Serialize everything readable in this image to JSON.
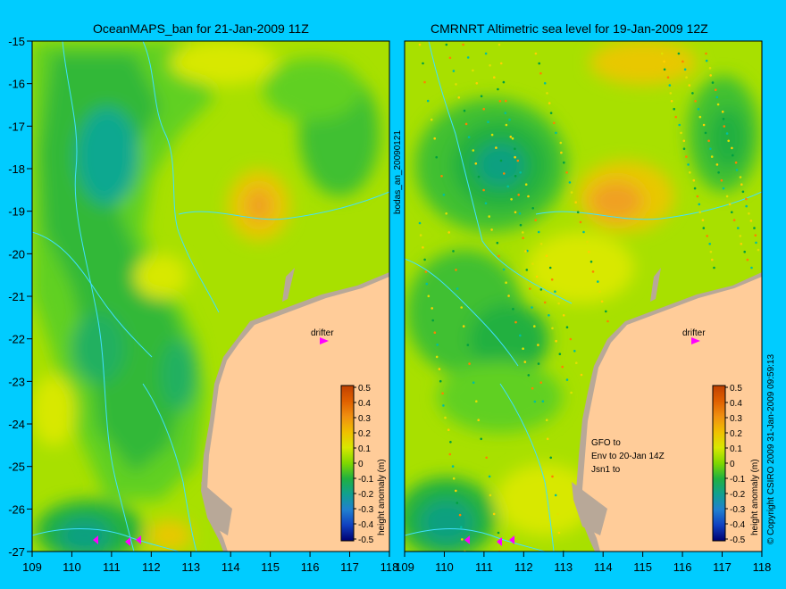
{
  "panels": {
    "left": {
      "title": "OceanMAPS_ban for 21-Jan-2009 11Z",
      "drifter_label": "drifter"
    },
    "right": {
      "title": "CMRNRT Altimetric sea level  for 19-Jan-2009 12Z",
      "drifter_label": "drifter",
      "sat_lines": [
        "GFO to",
        "Env to 20-Jan 14Z",
        "Jsn1 to"
      ]
    }
  },
  "axes": {
    "lat_ticks": [
      "-15",
      "-16",
      "-17",
      "-18",
      "-19",
      "-20",
      "-21",
      "-22",
      "-23",
      "-24",
      "-25",
      "-26",
      "-27"
    ],
    "lon_ticks_left": [
      "109",
      "110",
      "111",
      "112",
      "113",
      "114",
      "115",
      "116",
      "117",
      "118"
    ],
    "lon_ticks_right": [
      "109",
      "110",
      "111",
      "112",
      "113",
      "114",
      "115",
      "116",
      "117",
      "118"
    ]
  },
  "colorbar": {
    "label": "height anomaly (m)",
    "ticks": [
      "0.5",
      "0.4",
      "0.3",
      "0.2",
      "0.1",
      "0",
      "-0.1",
      "-0.2",
      "-0.3",
      "-0.4",
      "-0.5"
    ],
    "colors": [
      "#e06000",
      "#f08000",
      "#f0a020",
      "#e8c800",
      "#d8e800",
      "#a8e000",
      "#60d020",
      "#20b040",
      "#10a080",
      "#2090c0",
      "#2060d0",
      "#1030b0",
      "#000080"
    ]
  },
  "side_text": {
    "middle": "bodas_an_20090121",
    "right": "© Copyright CSIRO 2009    31-Jan-2009 09:59:13"
  }
}
